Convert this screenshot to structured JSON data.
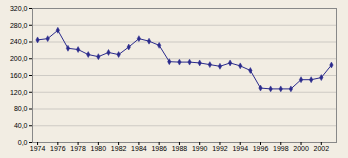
{
  "chart_data": {
    "type": "line",
    "x": [
      1974,
      1975,
      1976,
      1977,
      1978,
      1979,
      1980,
      1981,
      1982,
      1983,
      1984,
      1985,
      1986,
      1987,
      1988,
      1989,
      1990,
      1991,
      1992,
      1993,
      1994,
      1995,
      1996,
      1997,
      1998,
      1999,
      2000,
      2001,
      2002,
      2003
    ],
    "values": [
      245,
      248,
      268,
      225,
      222,
      210,
      205,
      215,
      210,
      228,
      248,
      242,
      232,
      193,
      192,
      192,
      190,
      186,
      182,
      190,
      183,
      172,
      130,
      128,
      128,
      128,
      150,
      150,
      155,
      185
    ],
    "color": "#2b2b8c",
    "marker": "diamond",
    "xlim": [
      1973.5,
      2003.5
    ],
    "ylim": [
      0,
      320
    ],
    "xticks": [
      1974,
      1976,
      1978,
      1980,
      1982,
      1984,
      1986,
      1988,
      1990,
      1992,
      1994,
      1996,
      1998,
      2000,
      2002
    ],
    "yticks": [
      {
        "value": 0,
        "label": "0,0"
      },
      {
        "value": 40,
        "label": "40,0"
      },
      {
        "value": 80,
        "label": "80,0"
      },
      {
        "value": 120,
        "label": "120,0"
      },
      {
        "value": 160,
        "label": "160,0"
      },
      {
        "value": 200,
        "label": "200,0"
      },
      {
        "value": 240,
        "label": "240,0"
      },
      {
        "value": 280,
        "label": "280,0"
      },
      {
        "value": 320,
        "label": "320,0"
      }
    ],
    "grid": true
  }
}
